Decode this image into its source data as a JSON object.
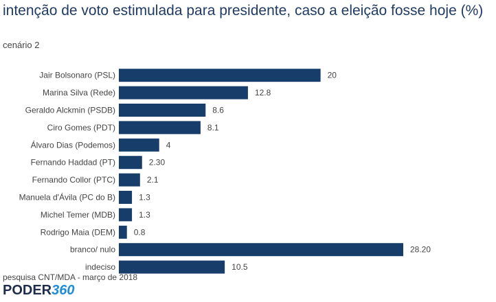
{
  "title": "intenção de voto estimulada para presidente, caso a eleição fosse hoje (%)",
  "subtitle": "cenário 2",
  "source": "pesquisa CNT/MDA - março de 2018",
  "logo": {
    "part1": "PODER",
    "part2": "360"
  },
  "colors": {
    "bar": "#173d6b",
    "title": "#1f3b63",
    "label": "#444444"
  },
  "chart_data": {
    "type": "bar",
    "orientation": "horizontal",
    "categories": [
      "Jair Bolsonaro (PSL)",
      "Marina Silva (Rede)",
      "Geraldo Alckmin (PSDB)",
      "Ciro Gomes (PDT)",
      "Álvaro Dias (Podemos)",
      "Fernando Haddad (PT)",
      "Fernando Collor (PTC)",
      "Manuela d'Ávila (PC do B)",
      "Michel Temer (MDB)",
      "Rodrigo Maia (DEM)",
      "branco/ nulo",
      "indeciso"
    ],
    "values": [
      20,
      12.8,
      8.6,
      8.1,
      4,
      2.3,
      2.1,
      1.3,
      1.3,
      0.8,
      28.2,
      10.5
    ],
    "value_labels": [
      "20",
      "12.8",
      "8.6",
      "8.1",
      "4",
      "2.30",
      "2.1",
      "1.3",
      "1.3",
      "0.8",
      "28.20",
      "10.5"
    ],
    "xlim": [
      0,
      28.2
    ],
    "grid": false,
    "legend": "none"
  }
}
